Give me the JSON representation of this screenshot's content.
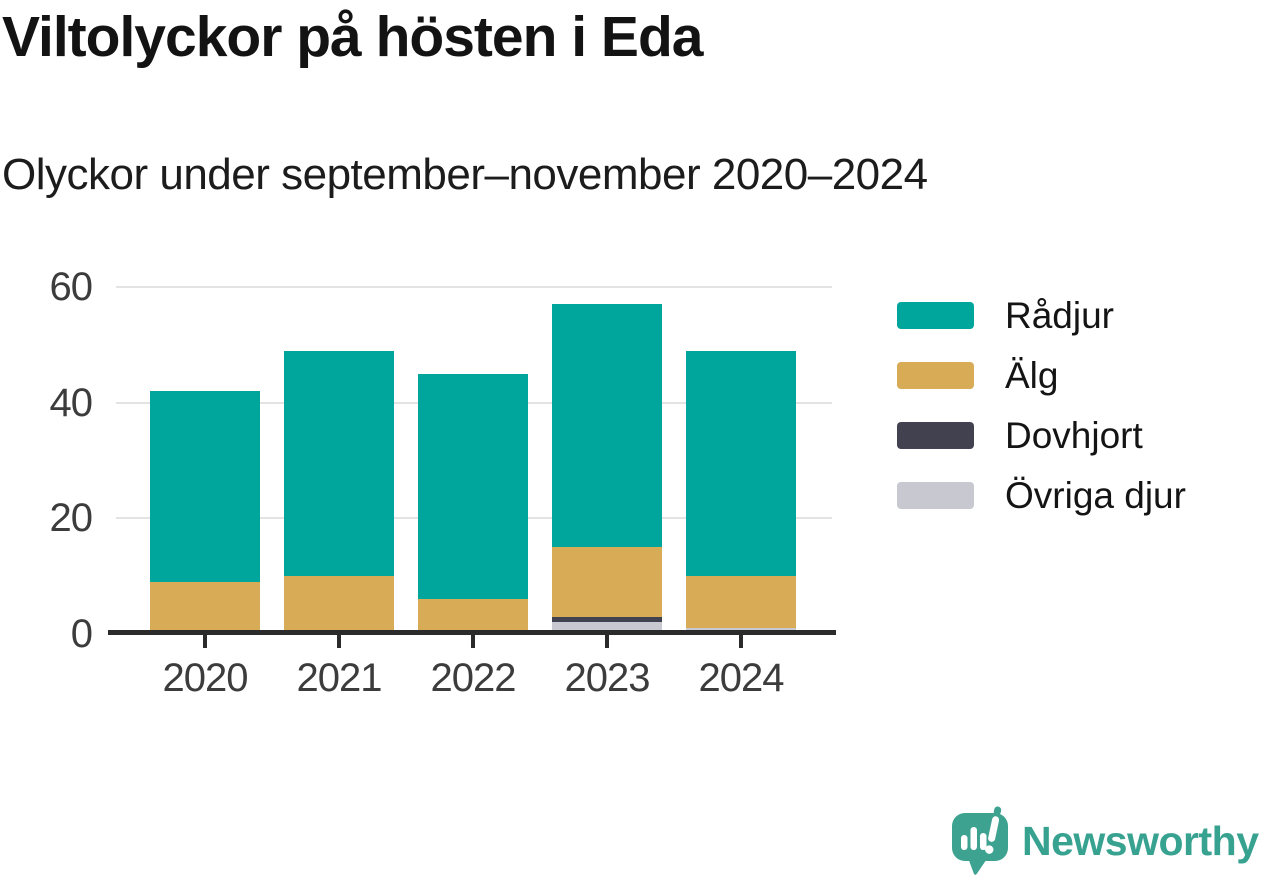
{
  "title": "Viltolyckor på hösten i Eda",
  "subtitle": "Olyckor under september–november 2020–2024",
  "chart_data": {
    "type": "bar",
    "stacked": true,
    "title": "Viltolyckor på hösten i Eda",
    "subtitle": "Olyckor under september–november 2020–2024",
    "categories": [
      "2020",
      "2021",
      "2022",
      "2023",
      "2024"
    ],
    "series": [
      {
        "name": "Rådjur",
        "color": "#00a69c",
        "values": [
          33,
          39,
          39,
          42,
          39
        ]
      },
      {
        "name": "Älg",
        "color": "#d8ab57",
        "values": [
          9,
          10,
          6,
          12,
          9
        ]
      },
      {
        "name": "Dovhjort",
        "color": "#424150",
        "values": [
          0,
          0,
          0,
          1,
          0
        ]
      },
      {
        "name": "Övriga djur",
        "color": "#c8c8d0",
        "values": [
          0,
          0,
          0,
          2,
          1
        ]
      }
    ],
    "stack_order_bottom_to_top": [
      "Övriga djur",
      "Dovhjort",
      "Älg",
      "Rådjur"
    ],
    "stack_totals": [
      42,
      49,
      45,
      57,
      49
    ],
    "xlabel": "",
    "ylabel": "",
    "ylim": [
      0,
      60
    ],
    "yticks": [
      0,
      20,
      40,
      60
    ],
    "grid": true,
    "legend_position": "right"
  },
  "branding": {
    "logo_text": "Newsworthy",
    "logo_icon": "newsworthy-speech-bubble-bar-chart-icon",
    "brand_color": "#38a291"
  },
  "colors": {
    "grid": "#e3e3e3",
    "axis": "#2b2b2b",
    "tick_text": "#3c3c3c",
    "label_text": "#141414"
  }
}
